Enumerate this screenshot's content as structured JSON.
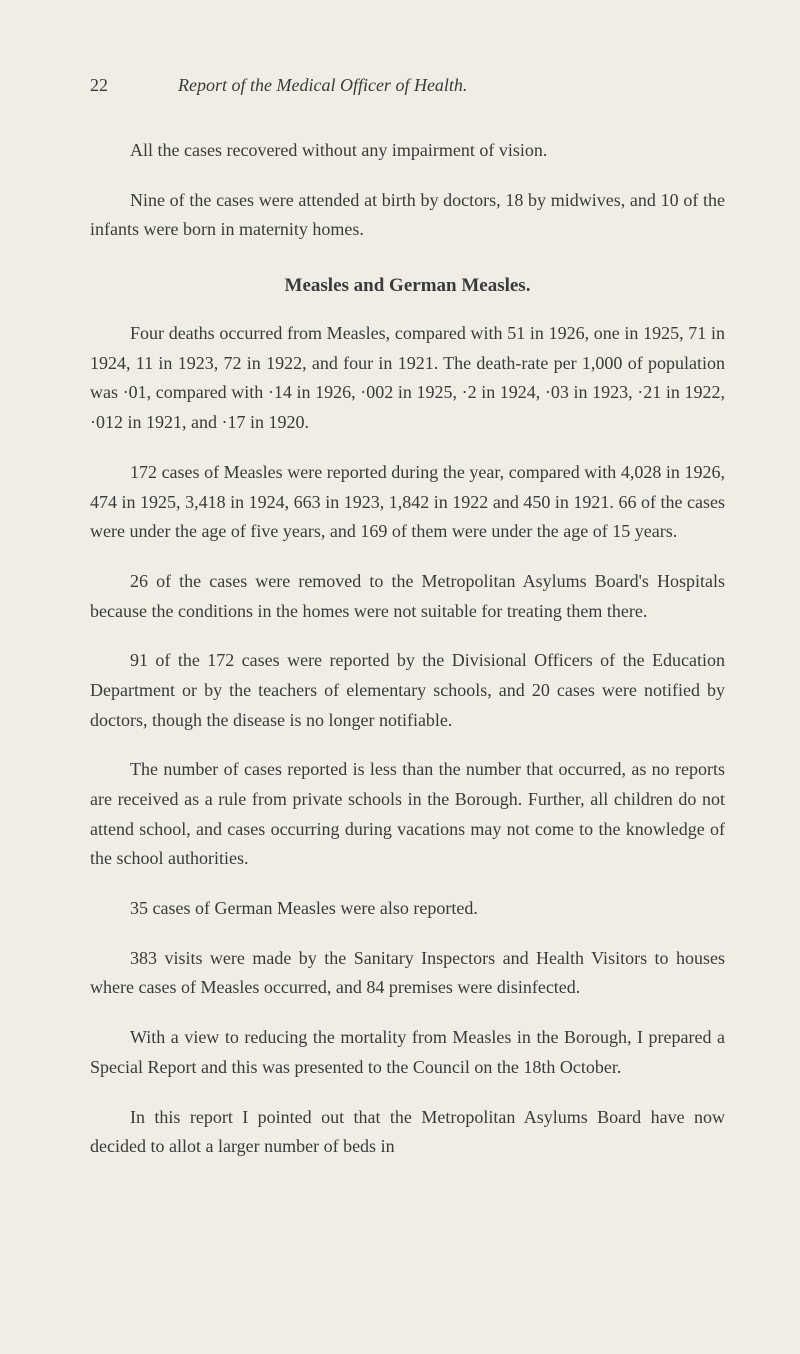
{
  "header": {
    "pageNumber": "22",
    "runningTitle": "Report of the Medical Officer of Health."
  },
  "paragraphs": {
    "p1": "All the cases recovered without any impairment of vision.",
    "p2": "Nine of the cases were attended at birth by doctors, 18 by midwives, and 10 of the infants were born in maternity homes.",
    "heading1": "Measles and German Measles.",
    "p3": "Four deaths occurred from Measles, compared with 51 in 1926, one in 1925, 71 in 1924, 11 in 1923, 72 in 1922, and four in 1921. The death-rate per 1,000 of population was ·01, compared with ·14 in 1926, ·002 in 1925, ·2 in 1924, ·03 in 1923, ·21 in 1922, ·012 in 1921, and ·17 in 1920.",
    "p4": "172 cases of Measles were reported during the year, compared with 4,028 in 1926, 474 in 1925, 3,418 in 1924, 663 in 1923, 1,842 in 1922 and 450 in 1921. 66 of the cases were under the age of five years, and 169 of them were under the age of 15 years.",
    "p5": "26 of the cases were removed to the Metropolitan Asylums Board's Hospitals because the conditions in the homes were not suitable for treating them there.",
    "p6": "91 of the 172 cases were reported by the Divisional Officers of the Education Department or by the teachers of elementary schools, and 20 cases were notified by doctors, though the disease is no longer notifiable.",
    "p7": "The number of cases reported is less than the number that occurred, as no reports are received as a rule from private schools in the Borough. Further, all children do not attend school, and cases occurring during vacations may not come to the knowledge of the school authorities.",
    "p8": "35 cases of German Measles were also reported.",
    "p9": "383 visits were made by the Sanitary Inspectors and Health Visitors to houses where cases of Measles occurred, and 84 premises were disinfected.",
    "p10": "With a view to reducing the mortality from Measles in the Borough, I prepared a Special Report and this was presented to the Council on the 18th October.",
    "p11": "In this report I pointed out that the Metropolitan Asylums Board have now decided to allot a larger number of beds in"
  },
  "styling": {
    "backgroundColor": "#f0ede4",
    "textColor": "#3a3a3a",
    "bodyFontSize": 18,
    "headingFontSize": 19,
    "lineHeight": 1.65,
    "pageWidth": 800,
    "pageHeight": 1354
  }
}
